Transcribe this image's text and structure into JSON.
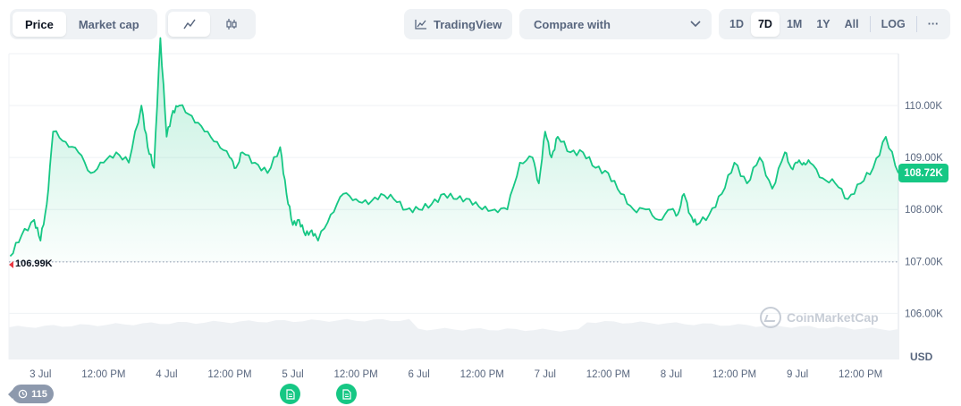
{
  "tabs": [
    {
      "label": "Price",
      "active": true
    },
    {
      "label": "Market cap",
      "active": false
    }
  ],
  "chart_types": [
    {
      "icon": "line-chart-icon",
      "active": true
    },
    {
      "icon": "candlestick-icon",
      "active": false
    }
  ],
  "tradingview_label": "TradingView",
  "compare_label": "Compare with",
  "ranges": [
    "1D",
    "7D",
    "1M",
    "1Y",
    "All"
  ],
  "active_range": "7D",
  "log_label": "LOG",
  "more_label": "···",
  "current_price_label": "108.72K",
  "low_label": "106.99K",
  "watermark": "CoinMarketCap",
  "events_count": "115",
  "colors": {
    "line": "#16c784",
    "badge": "#16c784",
    "low_marker": "#ea3943"
  },
  "chart_data": {
    "type": "area",
    "ylabel": "USD",
    "y_ticks": [
      "110.00K",
      "109.00K",
      "108.00K",
      "107.00K",
      "106.00K"
    ],
    "y_tick_values": [
      110000,
      109000,
      108000,
      107000,
      106000
    ],
    "ylim": [
      105800,
      111300
    ],
    "x_ticks": [
      "3 Jul",
      "12:00 PM",
      "4 Jul",
      "12:00 PM",
      "5 Jul",
      "12:00 PM",
      "6 Jul",
      "12:00 PM",
      "7 Jul",
      "12:00 PM",
      "8 Jul",
      "12:00 PM",
      "9 Jul",
      "12:00 PM"
    ],
    "x_range_days": [
      2.75,
      9.8
    ],
    "x_tick_days": [
      3.0,
      3.5,
      4.0,
      4.5,
      5.0,
      5.5,
      6.0,
      6.5,
      7.0,
      7.5,
      8.0,
      8.5,
      9.0,
      9.5
    ],
    "reference_line": 106990,
    "current_value": 108720,
    "grid": true,
    "volume_band": true,
    "series": [
      {
        "x": [
          2.76,
          2.85,
          2.95,
          3.0,
          3.05,
          3.1,
          3.2,
          3.3,
          3.4,
          3.5,
          3.6,
          3.7,
          3.8,
          3.85,
          3.9,
          3.95,
          4.0,
          4.05,
          4.1,
          4.2,
          4.3,
          4.4,
          4.5,
          4.55,
          4.6,
          4.7,
          4.8,
          4.9,
          4.95,
          5.0,
          5.05,
          5.1,
          5.15,
          5.2,
          5.3,
          5.4,
          5.5,
          5.6,
          5.7,
          5.8,
          5.9,
          6.0,
          6.1,
          6.2,
          6.3,
          6.4,
          6.5,
          6.6,
          6.7,
          6.8,
          6.9,
          6.95,
          7.0,
          7.05,
          7.1,
          7.2,
          7.3,
          7.4,
          7.5,
          7.6,
          7.7,
          7.8,
          7.9,
          8.0,
          8.05,
          8.1,
          8.15,
          8.2,
          8.3,
          8.4,
          8.5,
          8.6,
          8.7,
          8.8,
          8.9,
          8.95,
          9.0,
          9.05,
          9.1,
          9.2,
          9.3,
          9.4,
          9.5,
          9.6,
          9.7,
          9.8
        ],
        "y": [
          107100,
          107500,
          107800,
          107400,
          108100,
          109500,
          109300,
          109100,
          108700,
          108900,
          109100,
          108900,
          110000,
          109200,
          108800,
          111300,
          109400,
          109900,
          110000,
          109800,
          109500,
          109300,
          109000,
          108800,
          109100,
          108900,
          108700,
          109200,
          108300,
          107700,
          107800,
          107500,
          107600,
          107400,
          107900,
          108300,
          108200,
          108100,
          108300,
          108200,
          108000,
          108000,
          108100,
          108300,
          108200,
          108200,
          108000,
          108000,
          108000,
          108900,
          109000,
          108500,
          109500,
          109000,
          109400,
          109100,
          109100,
          108800,
          108700,
          108300,
          108000,
          108000,
          107800,
          108000,
          107900,
          108300,
          107900,
          107700,
          107900,
          108300,
          108900,
          108500,
          109000,
          108400,
          109100,
          108800,
          108900,
          108900,
          108900,
          108600,
          108500,
          108200,
          108500,
          108800,
          109400,
          108700
        ]
      }
    ]
  }
}
